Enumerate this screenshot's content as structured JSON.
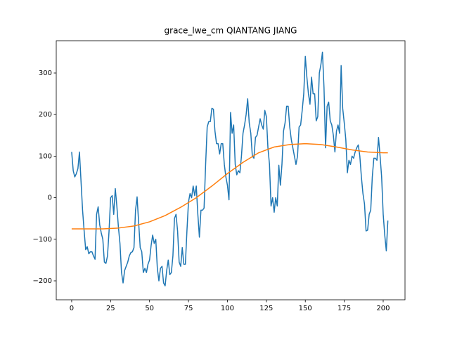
{
  "chart_data": {
    "type": "line",
    "title": "grace_lwe_cm QIANTANG JIANG",
    "xlim": [
      -9.9,
      214
    ],
    "ylim": [
      -245.6,
      377.7
    ],
    "xticks": [
      0,
      25,
      50,
      75,
      100,
      125,
      150,
      175,
      200
    ],
    "yticks": [
      {
        "value": -200,
        "label": "−200"
      },
      {
        "value": -100,
        "label": "−100"
      },
      0,
      100,
      200,
      300
    ],
    "series": [
      {
        "color": "#1f77b4",
        "x": [
          0,
          1,
          2,
          3,
          4,
          5,
          6,
          7,
          8,
          9,
          10,
          11,
          12,
          13,
          14,
          15,
          16,
          17,
          18,
          19,
          20,
          21,
          22,
          23,
          24,
          25,
          26,
          27,
          28,
          29,
          30,
          31,
          32,
          33,
          34,
          35,
          36,
          37,
          38,
          39,
          40,
          41,
          42,
          43,
          44,
          45,
          46,
          47,
          48,
          49,
          50,
          51,
          52,
          53,
          54,
          55,
          56,
          57,
          58,
          59,
          60,
          61,
          62,
          63,
          64,
          65,
          66,
          67,
          68,
          69,
          70,
          71,
          72,
          73,
          74,
          75,
          76,
          77,
          78,
          79,
          80,
          81,
          82,
          83,
          84,
          85,
          86,
          87,
          88,
          89,
          90,
          91,
          92,
          93,
          94,
          95,
          96,
          97,
          98,
          99,
          100,
          101,
          102,
          103,
          104,
          105,
          106,
          107,
          108,
          109,
          110,
          111,
          112,
          113,
          114,
          115,
          116,
          117,
          118,
          119,
          120,
          121,
          122,
          123,
          124,
          125,
          126,
          127,
          128,
          129,
          130,
          131,
          132,
          133,
          134,
          135,
          136,
          137,
          138,
          139,
          140,
          141,
          142,
          143,
          144,
          145,
          146,
          147,
          148,
          149,
          150,
          151,
          152,
          153,
          154,
          155,
          156,
          157,
          158,
          159,
          160,
          161,
          162,
          163,
          164,
          165,
          166,
          167,
          168,
          169,
          170,
          171,
          172,
          173,
          174,
          175,
          176,
          177,
          178,
          179,
          180,
          181,
          182,
          183,
          184,
          185,
          186,
          187,
          188,
          189,
          190,
          191,
          192,
          193,
          194,
          195,
          196,
          197,
          198,
          199,
          200,
          201,
          202,
          203
        ],
        "values": [
          110,
          65,
          50,
          58,
          70,
          110,
          40,
          -30,
          -80,
          -125,
          -118,
          -135,
          -130,
          -130,
          -140,
          -148,
          -40,
          -22,
          -65,
          -85,
          -100,
          -155,
          -158,
          -140,
          -80,
          0,
          5,
          -40,
          22,
          -20,
          -70,
          -110,
          -180,
          -205,
          -175,
          -165,
          -155,
          -140,
          -132,
          -130,
          -120,
          -30,
          2,
          -60,
          -120,
          -130,
          -180,
          -170,
          -180,
          -160,
          -150,
          -115,
          -90,
          -110,
          -100,
          -170,
          -200,
          -170,
          -165,
          -205,
          -212,
          -175,
          -150,
          -185,
          -180,
          -140,
          -50,
          -40,
          -80,
          -155,
          -165,
          -120,
          -160,
          -160,
          -80,
          -10,
          10,
          0,
          28,
          5,
          28,
          -40,
          -95,
          -30,
          -30,
          -25,
          80,
          170,
          183,
          183,
          215,
          213,
          160,
          130,
          130,
          105,
          130,
          130,
          80,
          50,
          30,
          -5,
          205,
          155,
          175,
          80,
          55,
          65,
          60,
          100,
          155,
          175,
          200,
          238,
          180,
          155,
          100,
          95,
          145,
          150,
          170,
          190,
          175,
          165,
          210,
          195,
          120,
          80,
          -20,
          0,
          -35,
          0,
          -20,
          78,
          30,
          80,
          160,
          180,
          220,
          220,
          170,
          140,
          120,
          100,
          80,
          100,
          170,
          175,
          210,
          250,
          340,
          290,
          250,
          225,
          290,
          250,
          250,
          185,
          195,
          300,
          320,
          350,
          265,
          120,
          220,
          230,
          185,
          175,
          150,
          110,
          160,
          175,
          155,
          318,
          215,
          180,
          140,
          60,
          90,
          80,
          100,
          95,
          110,
          120,
          127,
          100,
          50,
          10,
          -15,
          -80,
          -78,
          -40,
          -30,
          50,
          95,
          95,
          90,
          145,
          100,
          50,
          -40,
          -90,
          -128,
          -55
        ]
      },
      {
        "color": "#ff7f0e",
        "x": [
          0,
          10,
          20,
          30,
          40,
          50,
          60,
          70,
          80,
          90,
          100,
          110,
          120,
          130,
          140,
          150,
          160,
          170,
          180,
          190,
          200,
          203
        ],
        "values": [
          -75,
          -75,
          -75,
          -73,
          -68,
          -58,
          -43,
          -23,
          0,
          28,
          58,
          85,
          108,
          122,
          128,
          130,
          128,
          122,
          115,
          110,
          108,
          108
        ]
      }
    ]
  }
}
